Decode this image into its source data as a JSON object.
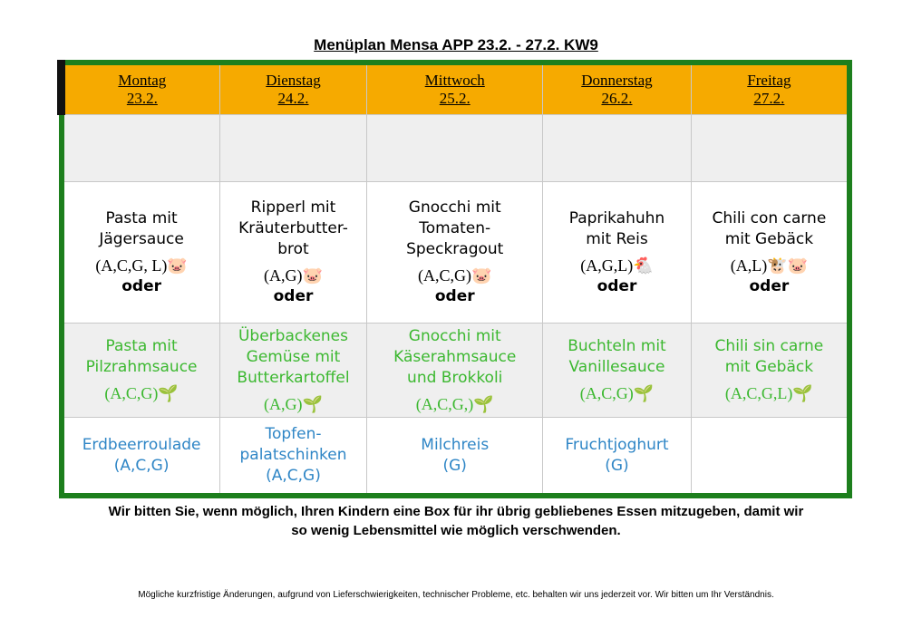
{
  "header": {
    "title": "Menüplan Mensa APP 23.2. - 27.2. KW9"
  },
  "table": {
    "days": [
      {
        "name": "Montag",
        "date": "23.2."
      },
      {
        "name": "Dienstag",
        "date": "24.2."
      },
      {
        "name": "Mittwoch",
        "date": "25.2."
      },
      {
        "name": "Donnerstag",
        "date": "26.2."
      },
      {
        "name": "Freitag",
        "date": "27.2."
      }
    ],
    "main": [
      {
        "dish": [
          "Pasta mit",
          "Jägersauce"
        ],
        "allergens": "(A,C,G, L)🐷",
        "alt": "oder"
      },
      {
        "dish": [
          "Ripperl mit",
          "Kräuterbutter-",
          "brot"
        ],
        "allergens": "(A,G)🐷",
        "alt": "oder"
      },
      {
        "dish": [
          "Gnocchi mit",
          "Tomaten-",
          "Speckragout"
        ],
        "allergens": "(A,C,G)🐷",
        "alt": "oder"
      },
      {
        "dish": [
          "Paprikahuhn",
          "mit Reis"
        ],
        "allergens": "(A,G,L)🐔",
        "alt": "oder"
      },
      {
        "dish": [
          "Chili con carne",
          "mit Gebäck"
        ],
        "allergens": "(A,L)🐮🐷",
        "alt": "oder"
      }
    ],
    "veg": [
      {
        "dish": [
          "Pasta mit",
          "Pilzrahmsauce"
        ],
        "allergens": "(A,C,G)🌱"
      },
      {
        "dish": [
          "Überbackenes",
          "Gemüse mit",
          "Butterkartoffel"
        ],
        "allergens": "(A,G)🌱"
      },
      {
        "dish": [
          "Gnocchi mit",
          "Käserahmsauce",
          "und Brokkoli"
        ],
        "allergens": "(A,C,G,)🌱"
      },
      {
        "dish": [
          "Buchteln mit",
          "Vanillesauce"
        ],
        "allergens": "(A,C,G)🌱"
      },
      {
        "dish": [
          "Chili sin carne",
          "mit Gebäck"
        ],
        "allergens": "(A,C,G,L)🌱"
      }
    ],
    "dessert": [
      {
        "dish": [
          "Erdbeerroulade"
        ],
        "allergens": "(A,C,G)"
      },
      {
        "dish": [
          "Topfen-",
          "palatschinken"
        ],
        "allergens": "(A,C,G)"
      },
      {
        "dish": [
          "Milchreis"
        ],
        "allergens": "(G)"
      },
      {
        "dish": [
          "Fruchtjoghurt"
        ],
        "allergens": "(G)"
      }
    ]
  },
  "note": [
    "Wir bitten Sie, wenn möglich, Ihren Kindern eine Box für ihr übrig gebliebenes Essen mitzugeben, damit wir",
    "so wenig Lebensmittel wie möglich verschwenden."
  ],
  "footer": "Mögliche kurzfristige Änderungen, aufgrund von Lieferschwierigkeiten, technischer Probleme, etc. behalten wir uns jederzeit vor. Wir bitten um Ihr Verständnis."
}
